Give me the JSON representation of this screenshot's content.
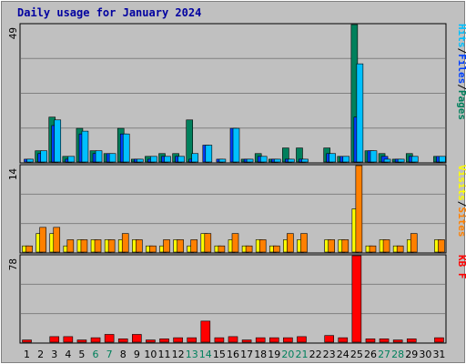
{
  "title": "Daily usage for January 2024",
  "colors": {
    "background": "#c0c0c0",
    "plot_bg": "#c0c0c0",
    "grid": "#808080",
    "pages": "#00805c",
    "files": "#0040ff",
    "hits": "#00c0ff",
    "visits": "#ffff00",
    "sites": "#ff8000",
    "kbytes": "#ff0000",
    "title": "#0000a0",
    "weekday_label": "#000000",
    "weekend_label": "#00805c"
  },
  "panels": {
    "top": {
      "max_label": "49",
      "legend": [
        "Hits",
        "/",
        "Files",
        "/",
        "Pages"
      ]
    },
    "middle": {
      "max_label": "14",
      "legend": [
        "Visits",
        "/",
        "Sites"
      ]
    },
    "bottom": {
      "max_label": "78",
      "legend": [
        "KB F"
      ]
    }
  },
  "chart_data": {
    "type": "bar",
    "title": "Daily usage for January 2024",
    "categories": [
      "1",
      "2",
      "3",
      "4",
      "5",
      "6",
      "7",
      "8",
      "9",
      "10",
      "11",
      "12",
      "13",
      "14",
      "15",
      "16",
      "17",
      "18",
      "19",
      "20",
      "21",
      "22",
      "23",
      "24",
      "25",
      "26",
      "27",
      "28",
      "29",
      "30",
      "31"
    ],
    "weekend_days": [
      "6",
      "7",
      "13",
      "14",
      "20",
      "21",
      "27",
      "28"
    ],
    "panels": [
      {
        "name": "top",
        "ylim": [
          0,
          49
        ],
        "series": [
          {
            "name": "Pages",
            "values": [
              0,
              4,
              16,
              2,
              12,
              4,
              3,
              12,
              1,
              2,
              3,
              3,
              15,
              0,
              0,
              0,
              1,
              3,
              1,
              5,
              5,
              0,
              5,
              2,
              49,
              4,
              3,
              1,
              3,
              0,
              2
            ]
          },
          {
            "name": "Files",
            "values": [
              1,
              3,
              13,
              1,
              10,
              3,
              3,
              10,
              1,
              1,
              2,
              2,
              1,
              6,
              1,
              12,
              1,
              2,
              1,
              1,
              1,
              0,
              3,
              2,
              16,
              4,
              2,
              1,
              2,
              0,
              2
            ]
          },
          {
            "name": "Hits",
            "values": [
              1,
              4,
              15,
              2,
              11,
              4,
              3,
              10,
              1,
              2,
              2,
              2,
              3,
              6,
              1,
              12,
              1,
              2,
              1,
              1,
              1,
              0,
              3,
              2,
              35,
              4,
              1,
              1,
              2,
              0,
              2
            ]
          }
        ]
      },
      {
        "name": "middle",
        "ylim": [
          0,
          14
        ],
        "series": [
          {
            "name": "Visits",
            "values": [
              1,
              3,
              3,
              1,
              2,
              2,
              2,
              2,
              2,
              1,
              1,
              2,
              1,
              3,
              1,
              2,
              1,
              2,
              1,
              2,
              2,
              0,
              2,
              2,
              7,
              1,
              2,
              1,
              2,
              0,
              2
            ]
          },
          {
            "name": "Sites",
            "values": [
              1,
              4,
              4,
              2,
              2,
              2,
              2,
              3,
              2,
              1,
              2,
              2,
              2,
              3,
              1,
              3,
              1,
              2,
              1,
              3,
              3,
              0,
              2,
              2,
              14,
              1,
              2,
              1,
              3,
              0,
              2
            ]
          }
        ]
      },
      {
        "name": "bottom",
        "ylim": [
          0,
          78
        ],
        "series": [
          {
            "name": "KB F",
            "values": [
              2,
              0,
              5,
              5,
              2,
              4,
              7,
              3,
              7,
              2,
              3,
              4,
              4,
              19,
              4,
              5,
              2,
              4,
              4,
              4,
              5,
              0,
              6,
              4,
              78,
              3,
              3,
              2,
              3,
              0,
              4
            ]
          }
        ]
      }
    ]
  }
}
